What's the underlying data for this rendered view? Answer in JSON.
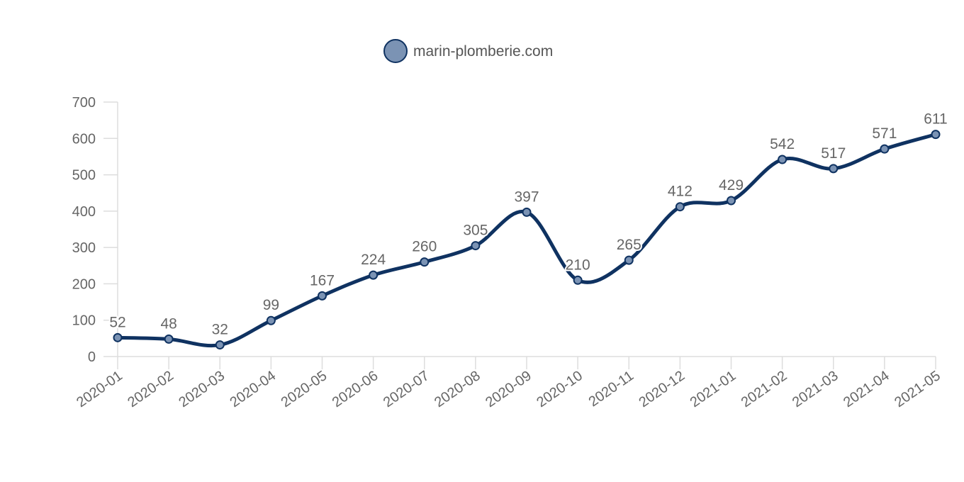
{
  "chart_data": {
    "type": "line",
    "smooth": true,
    "categories": [
      "2020-01",
      "2020-02",
      "2020-03",
      "2020-04",
      "2020-05",
      "2020-06",
      "2020-07",
      "2020-08",
      "2020-09",
      "2020-10",
      "2020-11",
      "2020-12",
      "2021-01",
      "2021-02",
      "2021-03",
      "2021-04",
      "2021-05"
    ],
    "series": [
      {
        "name": "marin-plomberie.com",
        "values": [
          52,
          48,
          32,
          99,
          167,
          224,
          260,
          305,
          397,
          210,
          265,
          412,
          429,
          542,
          517,
          571,
          611
        ],
        "line_color": "#0f3261",
        "marker_fill": "#7b93b4"
      }
    ],
    "ylim": [
      0,
      700
    ],
    "yticks": [
      0,
      100,
      200,
      300,
      400,
      500,
      600,
      700
    ],
    "grid": false,
    "legend": "top-center",
    "data_labels": true,
    "axis_color": "#dddddd",
    "text_color": "#666666"
  }
}
